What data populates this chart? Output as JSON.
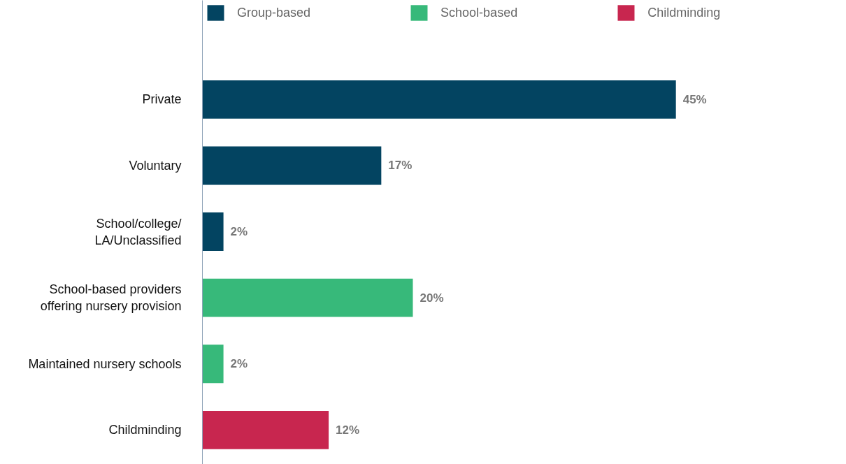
{
  "chart_data": {
    "type": "bar",
    "orientation": "horizontal",
    "categories": [
      "Private",
      "Voluntary",
      "School/college/\nLA/Unclassified",
      "School-based providers\noffering nursery provision",
      "Maintained nursery schools",
      "Childminding"
    ],
    "series": [
      {
        "name": "Group-based",
        "color": "#034461",
        "values": [
          45,
          17,
          2,
          null,
          null,
          null
        ],
        "value_labels": [
          "45%",
          "17%",
          "2%",
          null,
          null,
          null
        ]
      },
      {
        "name": "School-based",
        "color": "#37b97a",
        "values": [
          null,
          null,
          null,
          20,
          2,
          null
        ],
        "value_labels": [
          null,
          null,
          null,
          "20%",
          "2%",
          null
        ]
      },
      {
        "name": "Childminding",
        "color": "#c8264f",
        "values": [
          null,
          null,
          null,
          null,
          null,
          12
        ],
        "value_labels": [
          null,
          null,
          null,
          null,
          null,
          "12%"
        ]
      }
    ],
    "legend": "top",
    "grid": false
  }
}
